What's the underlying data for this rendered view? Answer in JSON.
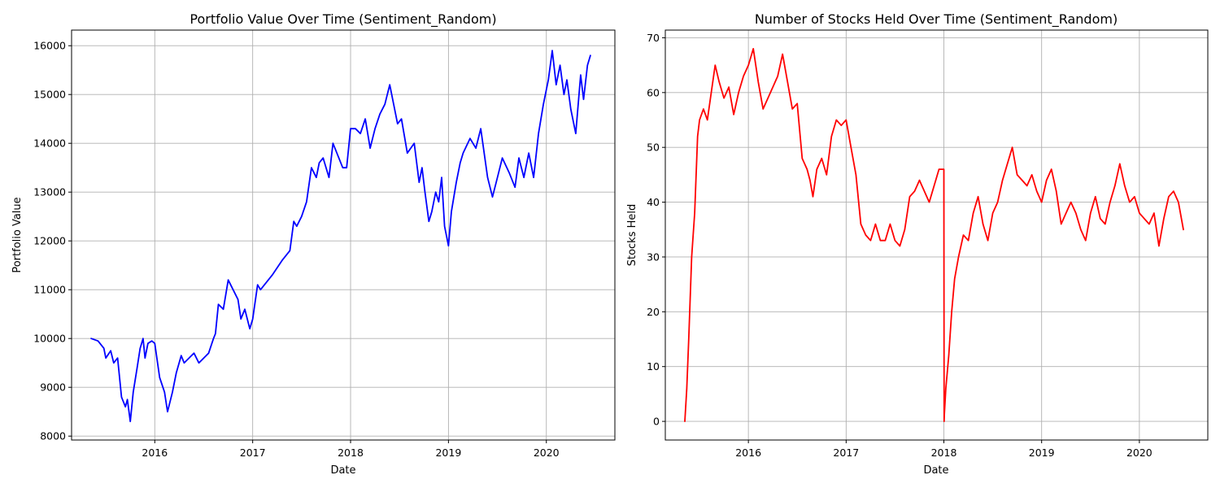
{
  "chart_data": [
    {
      "type": "line",
      "title": "Portfolio Value Over Time (Sentiment_Random)",
      "xlabel": "Date",
      "ylabel": "Portfolio Value",
      "xlim": [
        2015.15,
        2020.7
      ],
      "ylim": [
        7920,
        16320
      ],
      "xticks": [
        2016,
        2017,
        2018,
        2019,
        2020
      ],
      "xtick_labels": [
        "2016",
        "2017",
        "2018",
        "2019",
        "2020"
      ],
      "yticks": [
        8000,
        9000,
        10000,
        11000,
        12000,
        13000,
        14000,
        15000,
        16000
      ],
      "ytick_labels": [
        "8000",
        "9000",
        "10000",
        "11000",
        "12000",
        "13000",
        "14000",
        "15000",
        "16000"
      ],
      "grid": true,
      "color": "#0000ff",
      "series": [
        {
          "x": [
            2015.35,
            2015.42,
            2015.48,
            2015.5,
            2015.55,
            2015.58,
            2015.62,
            2015.66,
            2015.7,
            2015.72,
            2015.75,
            2015.78,
            2015.82,
            2015.85,
            2015.88,
            2015.9,
            2015.93,
            2015.97,
            2016.0,
            2016.05,
            2016.1,
            2016.13,
            2016.18,
            2016.22,
            2016.27,
            2016.3,
            2016.35,
            2016.4,
            2016.45,
            2016.5,
            2016.55,
            2016.6,
            2016.62,
            2016.65,
            2016.7,
            2016.75,
            2016.8,
            2016.85,
            2016.88,
            2016.92,
            2016.97,
            2017.0,
            2017.05,
            2017.08,
            2017.12,
            2017.2,
            2017.3,
            2017.38,
            2017.42,
            2017.45,
            2017.5,
            2017.55,
            2017.6,
            2017.65,
            2017.68,
            2017.72,
            2017.78,
            2017.82,
            2017.88,
            2017.92,
            2017.96,
            2018.0,
            2018.05,
            2018.1,
            2018.15,
            2018.2,
            2018.25,
            2018.3,
            2018.35,
            2018.4,
            2018.44,
            2018.48,
            2018.52,
            2018.58,
            2018.65,
            2018.7,
            2018.73,
            2018.76,
            2018.8,
            2018.83,
            2018.87,
            2018.9,
            2018.93,
            2018.96,
            2019.0,
            2019.03,
            2019.08,
            2019.12,
            2019.15,
            2019.22,
            2019.28,
            2019.33,
            2019.4,
            2019.45,
            2019.5,
            2019.55,
            2019.62,
            2019.68,
            2019.72,
            2019.77,
            2019.82,
            2019.87,
            2019.92,
            2019.97,
            2020.02,
            2020.06,
            2020.1,
            2020.14,
            2020.18,
            2020.21,
            2020.25,
            2020.3,
            2020.35,
            2020.38,
            2020.42,
            2020.45
          ],
          "y": [
            10000,
            9950,
            9800,
            9600,
            9750,
            9500,
            9600,
            8800,
            8600,
            8750,
            8300,
            8900,
            9400,
            9800,
            10000,
            9600,
            9900,
            9950,
            9900,
            9200,
            8900,
            8500,
            8900,
            9300,
            9650,
            9500,
            9600,
            9700,
            9500,
            9600,
            9700,
            10000,
            10100,
            10700,
            10600,
            11200,
            11000,
            10800,
            10400,
            10600,
            10200,
            10400,
            11100,
            11000,
            11100,
            11300,
            11600,
            11800,
            12400,
            12300,
            12500,
            12800,
            13500,
            13300,
            13600,
            13700,
            13300,
            14000,
            13700,
            13500,
            13500,
            14300,
            14300,
            14200,
            14500,
            13900,
            14300,
            14600,
            14800,
            15200,
            14800,
            14400,
            14500,
            13800,
            14000,
            13200,
            13500,
            13000,
            12400,
            12600,
            13000,
            12800,
            13300,
            12300,
            11900,
            12600,
            13200,
            13600,
            13800,
            14100,
            13900,
            14300,
            13300,
            12900,
            13300,
            13700,
            13400,
            13100,
            13700,
            13300,
            13800,
            13300,
            14200,
            14800,
            15300,
            15900,
            15200,
            15600,
            15000,
            15300,
            14700,
            14200,
            15400,
            14900,
            15600,
            15800
          ]
        }
      ]
    },
    {
      "type": "line",
      "title": "Number of Stocks Held Over Time (Sentiment_Random)",
      "xlabel": "Date",
      "ylabel": "Stocks Held",
      "xlim": [
        2015.15,
        2020.7
      ],
      "ylim": [
        -3.4,
        71.4
      ],
      "xticks": [
        2016,
        2017,
        2018,
        2019,
        2020
      ],
      "xtick_labels": [
        "2016",
        "2017",
        "2018",
        "2019",
        "2020"
      ],
      "yticks": [
        0,
        10,
        20,
        30,
        40,
        50,
        60,
        70
      ],
      "ytick_labels": [
        "0",
        "10",
        "20",
        "30",
        "40",
        "50",
        "60",
        "70"
      ],
      "grid": true,
      "color": "#ff0000",
      "series": [
        {
          "x": [
            2015.35,
            2015.37,
            2015.39,
            2015.42,
            2015.45,
            2015.48,
            2015.5,
            2015.54,
            2015.58,
            2015.62,
            2015.66,
            2015.7,
            2015.75,
            2015.8,
            2015.85,
            2015.9,
            2015.95,
            2016.0,
            2016.05,
            2016.1,
            2016.15,
            2016.2,
            2016.25,
            2016.3,
            2016.35,
            2016.4,
            2016.45,
            2016.5,
            2016.55,
            2016.6,
            2016.63,
            2016.66,
            2016.7,
            2016.75,
            2016.8,
            2016.85,
            2016.9,
            2016.95,
            2017.0,
            2017.05,
            2017.1,
            2017.15,
            2017.2,
            2017.25,
            2017.3,
            2017.35,
            2017.4,
            2017.45,
            2017.5,
            2017.55,
            2017.6,
            2017.65,
            2017.7,
            2017.75,
            2017.8,
            2017.85,
            2017.9,
            2017.95,
            2018.0,
            2018.002,
            2018.004,
            2018.02,
            2018.05,
            2018.08,
            2018.11,
            2018.15,
            2018.2,
            2018.25,
            2018.3,
            2018.35,
            2018.4,
            2018.45,
            2018.5,
            2018.55,
            2018.6,
            2018.65,
            2018.7,
            2018.75,
            2018.8,
            2018.85,
            2018.9,
            2018.95,
            2019.0,
            2019.05,
            2019.1,
            2019.15,
            2019.2,
            2019.25,
            2019.3,
            2019.35,
            2019.4,
            2019.45,
            2019.5,
            2019.55,
            2019.6,
            2019.65,
            2019.7,
            2019.75,
            2019.8,
            2019.85,
            2019.9,
            2019.95,
            2020.0,
            2020.05,
            2020.1,
            2020.15,
            2020.2,
            2020.25,
            2020.3,
            2020.35,
            2020.4,
            2020.45
          ],
          "y": [
            0,
            6,
            15,
            30,
            38,
            52,
            55,
            57,
            55,
            60,
            65,
            62,
            59,
            61,
            56,
            60,
            63,
            65,
            68,
            62,
            57,
            59,
            61,
            63,
            67,
            62,
            57,
            58,
            48,
            46,
            44,
            41,
            46,
            48,
            45,
            52,
            55,
            54,
            55,
            50,
            45,
            36,
            34,
            33,
            36,
            33,
            33,
            36,
            33,
            32,
            35,
            41,
            42,
            44,
            42,
            40,
            43,
            46,
            46,
            0,
            1,
            6,
            12,
            20,
            26,
            30,
            34,
            33,
            38,
            41,
            36,
            33,
            38,
            40,
            44,
            47,
            50,
            45,
            44,
            43,
            45,
            42,
            40,
            44,
            46,
            42,
            36,
            38,
            40,
            38,
            35,
            33,
            38,
            41,
            37,
            36,
            40,
            43,
            47,
            43,
            40,
            41,
            38,
            37,
            36,
            38,
            32,
            37,
            41,
            42,
            40,
            35
          ]
        }
      ]
    }
  ]
}
